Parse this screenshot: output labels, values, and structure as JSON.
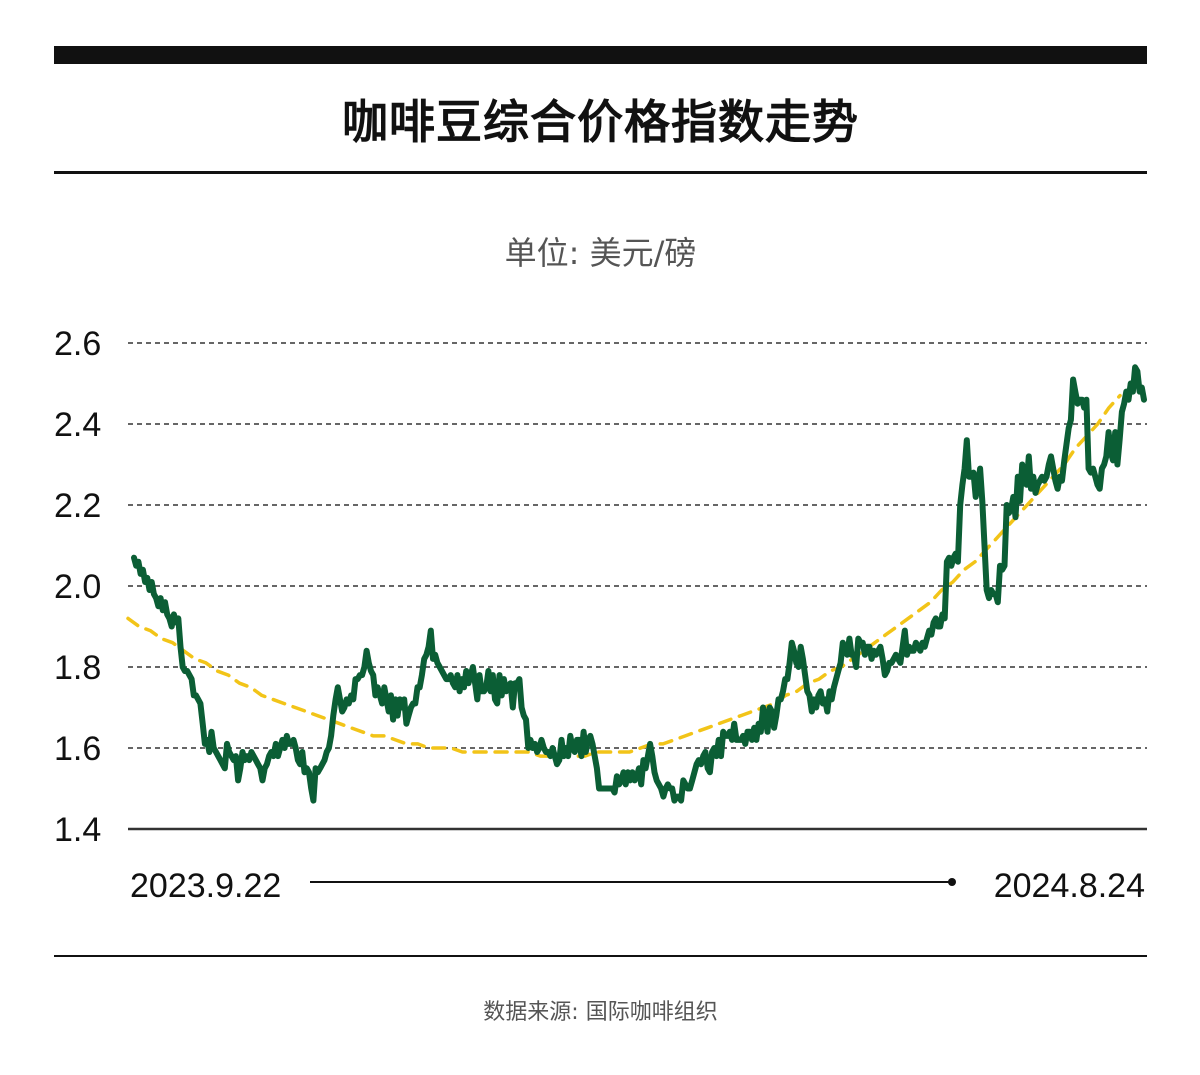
{
  "title": "咖啡豆综合价格指数走势",
  "unit_label": "单位: 美元/磅",
  "source": "数据来源: 国际咖啡组织",
  "colors": {
    "series": "#0b5e35",
    "trend": "#f2c418",
    "grid": "#333333",
    "text": "#111111"
  },
  "chart_data": {
    "type": "line",
    "title": "咖啡豆综合价格指数走势",
    "ylabel": "单位: 美元/磅",
    "ylim": [
      1.4,
      2.6
    ],
    "yticks": [
      "1.4",
      "1.6",
      "1.8",
      "2.0",
      "2.2",
      "2.4",
      "2.6"
    ],
    "grid": true,
    "x_start_label": "2023.9.22",
    "x_end_label": "2024.8.24",
    "series": [
      {
        "values": [
          2.07,
          2.05,
          2.06,
          2.03,
          2.04,
          2.01,
          2.02,
          1.99,
          2.01,
          1.98,
          1.97,
          1.95,
          1.97,
          1.94,
          1.96,
          1.93,
          1.92,
          1.9,
          1.93,
          1.91,
          1.92,
          1.85,
          1.8,
          1.79,
          1.79,
          1.78,
          1.77,
          1.73,
          1.73,
          1.72,
          1.71,
          1.66,
          1.61,
          1.62,
          1.59,
          1.64,
          1.6,
          1.59,
          1.58,
          1.57,
          1.56,
          1.55,
          1.61,
          1.59,
          1.58,
          1.57,
          1.58,
          1.52,
          1.55,
          1.59,
          1.57,
          1.58,
          1.57,
          1.59,
          1.58,
          1.57,
          1.56,
          1.55,
          1.52,
          1.55,
          1.56,
          1.58,
          1.59,
          1.58,
          1.61,
          1.58,
          1.6,
          1.62,
          1.6,
          1.63,
          1.61,
          1.61,
          1.62,
          1.6,
          1.57,
          1.56,
          1.59,
          1.54,
          1.55,
          1.54,
          1.5,
          1.47,
          1.55,
          1.54,
          1.55,
          1.56,
          1.57,
          1.59,
          1.6,
          1.63,
          1.68,
          1.72,
          1.75,
          1.72,
          1.69,
          1.7,
          1.72,
          1.71,
          1.73,
          1.72,
          1.77,
          1.77,
          1.78,
          1.78,
          1.8,
          1.84,
          1.81,
          1.79,
          1.78,
          1.73,
          1.75,
          1.73,
          1.71,
          1.75,
          1.72,
          1.69,
          1.73,
          1.67,
          1.72,
          1.68,
          1.72,
          1.7,
          1.72,
          1.66,
          1.68,
          1.7,
          1.71,
          1.71,
          1.75,
          1.75,
          1.78,
          1.82,
          1.83,
          1.85,
          1.89,
          1.82,
          1.83,
          1.81,
          1.8,
          1.79,
          1.78,
          1.77,
          1.77,
          1.78,
          1.76,
          1.75,
          1.78,
          1.74,
          1.77,
          1.75,
          1.79,
          1.76,
          1.78,
          1.8,
          1.76,
          1.72,
          1.78,
          1.74,
          1.74,
          1.75,
          1.79,
          1.74,
          1.78,
          1.72,
          1.71,
          1.78,
          1.73,
          1.77,
          1.74,
          1.75,
          1.76,
          1.7,
          1.76,
          1.76,
          1.77,
          1.7,
          1.68,
          1.67,
          1.6,
          1.62,
          1.6,
          1.61,
          1.59,
          1.6,
          1.62,
          1.6,
          1.59,
          1.59,
          1.58,
          1.6,
          1.58,
          1.56,
          1.57,
          1.62,
          1.58,
          1.6,
          1.58,
          1.63,
          1.6,
          1.59,
          1.62,
          1.62,
          1.58,
          1.64,
          1.59,
          1.62,
          1.63,
          1.61,
          1.58,
          1.55,
          1.5,
          1.5,
          1.5,
          1.5,
          1.5,
          1.5,
          1.5,
          1.49,
          1.53,
          1.51,
          1.52,
          1.54,
          1.51,
          1.54,
          1.52,
          1.54,
          1.52,
          1.53,
          1.55,
          1.51,
          1.57,
          1.55,
          1.58,
          1.61,
          1.58,
          1.54,
          1.52,
          1.51,
          1.5,
          1.48,
          1.5,
          1.51,
          1.5,
          1.5,
          1.47,
          1.48,
          1.48,
          1.47,
          1.52,
          1.51,
          1.5,
          1.5,
          1.52,
          1.54,
          1.56,
          1.57,
          1.56,
          1.58,
          1.59,
          1.55,
          1.54,
          1.59,
          1.6,
          1.58,
          1.62,
          1.58,
          1.64,
          1.63,
          1.63,
          1.64,
          1.62,
          1.66,
          1.62,
          1.62,
          1.62,
          1.63,
          1.61,
          1.64,
          1.64,
          1.62,
          1.65,
          1.62,
          1.66,
          1.64,
          1.7,
          1.68,
          1.64,
          1.7,
          1.69,
          1.65,
          1.68,
          1.72,
          1.72,
          1.74,
          1.77,
          1.77,
          1.81,
          1.86,
          1.84,
          1.81,
          1.8,
          1.85,
          1.82,
          1.78,
          1.74,
          1.73,
          1.69,
          1.72,
          1.7,
          1.73,
          1.74,
          1.71,
          1.72,
          1.69,
          1.74,
          1.72,
          1.75,
          1.77,
          1.79,
          1.81,
          1.86,
          1.84,
          1.83,
          1.87,
          1.83,
          1.83,
          1.8,
          1.87,
          1.86,
          1.86,
          1.83,
          1.85,
          1.85,
          1.82,
          1.84,
          1.83,
          1.84,
          1.85,
          1.82,
          1.78,
          1.79,
          1.81,
          1.81,
          1.82,
          1.83,
          1.82,
          1.81,
          1.85,
          1.89,
          1.83,
          1.85,
          1.84,
          1.84,
          1.86,
          1.85,
          1.84,
          1.86,
          1.85,
          1.87,
          1.89,
          1.88,
          1.91,
          1.92,
          1.9,
          1.9,
          1.93,
          1.92,
          2.06,
          2.07,
          2.05,
          2.07,
          2.08,
          2.06,
          2.2,
          2.25,
          2.29,
          2.36,
          2.27,
          2.27,
          2.28,
          2.22,
          2.25,
          2.29,
          2.21,
          2.1,
          1.99,
          1.97,
          1.99,
          1.98,
          1.98,
          1.96,
          2.05,
          2.04,
          2.05,
          2.2,
          2.18,
          2.19,
          2.22,
          2.17,
          2.27,
          2.21,
          2.3,
          2.26,
          2.25,
          2.32,
          2.24,
          2.27,
          2.23,
          2.25,
          2.26,
          2.27,
          2.26,
          2.27,
          2.3,
          2.32,
          2.29,
          2.26,
          2.24,
          2.27,
          2.26,
          2.31,
          2.35,
          2.39,
          2.41,
          2.51,
          2.48,
          2.45,
          2.46,
          2.46,
          2.44,
          2.46,
          2.29,
          2.28,
          2.29,
          2.27,
          2.25,
          2.24,
          2.29,
          2.3,
          2.32,
          2.38,
          2.33,
          2.31,
          2.38,
          2.3,
          2.36,
          2.43,
          2.45,
          2.48,
          2.46,
          2.5,
          2.48,
          2.54,
          2.53,
          2.48,
          2.49,
          2.46
        ]
      },
      {
        "values": [
          1.92,
          1.9,
          1.89,
          1.87,
          1.86,
          1.84,
          1.82,
          1.81,
          1.79,
          1.78,
          1.76,
          1.75,
          1.73,
          1.72,
          1.71,
          1.7,
          1.69,
          1.68,
          1.67,
          1.66,
          1.65,
          1.64,
          1.63,
          1.63,
          1.62,
          1.61,
          1.61,
          1.6,
          1.6,
          1.6,
          1.59,
          1.59,
          1.59,
          1.59,
          1.59,
          1.59,
          1.59,
          1.58,
          1.58,
          1.58,
          1.58,
          1.58,
          1.59,
          1.59,
          1.59,
          1.59,
          1.6,
          1.61,
          1.61,
          1.62,
          1.63,
          1.64,
          1.65,
          1.66,
          1.67,
          1.68,
          1.69,
          1.7,
          1.71,
          1.73,
          1.74,
          1.76,
          1.77,
          1.79,
          1.8,
          1.82,
          1.84,
          1.86,
          1.88,
          1.9,
          1.92,
          1.94,
          1.96,
          1.99,
          2.01,
          2.04,
          2.06,
          2.09,
          2.12,
          2.15,
          2.18,
          2.21,
          2.24,
          2.27,
          2.3,
          2.34,
          2.37,
          2.4,
          2.44,
          2.47
        ]
      }
    ]
  }
}
